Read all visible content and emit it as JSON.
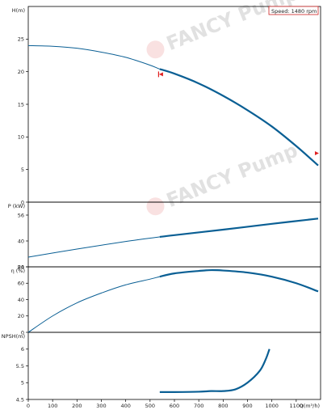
{
  "chart_data": {
    "type": "line",
    "x_axis": {
      "label": "Q(m³/h)",
      "ticks": [
        0,
        100,
        200,
        300,
        400,
        500,
        600,
        700,
        800,
        900,
        1000,
        1100
      ],
      "range": [
        0,
        1200
      ]
    },
    "legend": {
      "text": "Speed: 1480 rpm",
      "placement": "top-right"
    },
    "watermark": "FANCY Pump",
    "colors": {
      "curve": "#0a5f94",
      "marker": "#e02020",
      "frame": "#000000",
      "legend_border": "#cc2222"
    },
    "panels": [
      {
        "id": "head",
        "ylabel": "H(m)",
        "ylim": [
          0,
          30
        ],
        "yticks": [
          0,
          5,
          10,
          15,
          20,
          25
        ],
        "series": [
          {
            "x": [
              0,
              100,
              200,
              300,
              400,
              500,
              540,
              600,
              700,
              800,
              900,
              1000,
              1100,
              1200
            ],
            "y": [
              24.0,
              23.9,
              23.6,
              23.0,
              22.2,
              21.0,
              20.4,
              19.7,
              18.2,
              16.3,
              14.1,
              11.6,
              8.6,
              5.3
            ],
            "highlight_from": 540,
            "end": 1190
          }
        ],
        "markers": [
          {
            "x": 540,
            "y": 19.6,
            "type": "bracket"
          },
          {
            "x": 1190,
            "y": 7.5,
            "type": "arrow"
          }
        ]
      },
      {
        "id": "power",
        "ylabel": "P (kW)",
        "ylim": [
          24,
          64
        ],
        "yticks": [
          24,
          40,
          56
        ],
        "series": [
          {
            "x": [
              0,
              200,
              400,
              540,
              600,
              800,
              1000,
              1200
            ],
            "y": [
              30.0,
              35.0,
              39.7,
              42.5,
              43.6,
              47.0,
              50.6,
              54.0
            ],
            "highlight_from": 540,
            "end": 1190
          }
        ]
      },
      {
        "id": "efficiency",
        "ylabel": "η (%)",
        "ylim": [
          0,
          80
        ],
        "yticks": [
          0,
          20,
          40,
          60,
          80
        ],
        "series": [
          {
            "x": [
              0,
              100,
              200,
              300,
              400,
              500,
              540,
              600,
              700,
              750,
              800,
              900,
              1000,
              1100,
              1190
            ],
            "y": [
              0,
              20,
              36,
              48,
              58,
              65,
              68,
              72,
              75,
              76,
              75.5,
              73,
              68,
              60,
              50
            ],
            "highlight_from": 540,
            "end": 1190
          }
        ]
      },
      {
        "id": "npsh",
        "ylabel": "NPSH(m)",
        "ylim": [
          4.5,
          6.5
        ],
        "yticks": [
          4.5,
          5,
          5.5,
          6
        ],
        "series": [
          {
            "x": [
              540,
              600,
              700,
              750,
              800,
              850,
              900,
              950,
              975,
              990
            ],
            "y": [
              4.72,
              4.72,
              4.73,
              4.75,
              4.75,
              4.8,
              5.0,
              5.35,
              5.7,
              6.0
            ],
            "highlight_from": 540,
            "end": 990
          }
        ]
      }
    ]
  }
}
